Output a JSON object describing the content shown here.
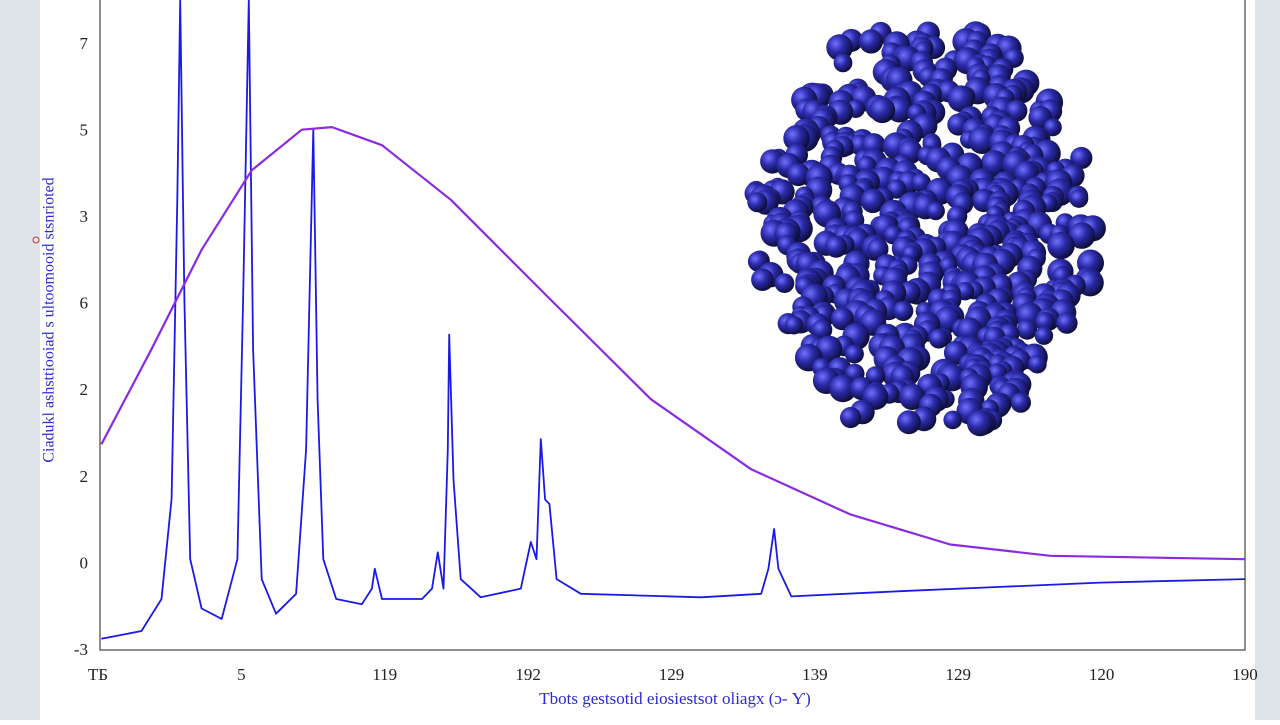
{
  "chart_data": {
    "type": "line",
    "x_axis_label": "Ƭbots gestsotid eiosiestsot oliagx (ɔ- Ƴ)",
    "y_axis_label": "Ciadukl ashsttiooiad s ultoomooid stsnrioted",
    "x_labels": [
      "ТБ",
      "5",
      "119",
      "192",
      "129",
      "139",
      "129",
      "120",
      "190"
    ],
    "y_labels": [
      "-3",
      "0",
      "2",
      "2",
      "6",
      "3",
      "5",
      "7"
    ],
    "xlim": [
      0,
      8
    ],
    "ylim": [
      0,
      7.52
    ],
    "series": [
      {
        "color": "#1a1ae6",
        "x": [
          0.01,
          0.29,
          0.43,
          0.5,
          0.54,
          0.56,
          0.59,
          0.63,
          0.71,
          0.85,
          0.96,
          1.0,
          1.04,
          1.07,
          1.13,
          1.23,
          1.37,
          1.44,
          1.49,
          1.52,
          1.56,
          1.65,
          1.83,
          1.9,
          1.92,
          1.97,
          2.25,
          2.32,
          2.36,
          2.4,
          2.43,
          2.44,
          2.47,
          2.52,
          2.66,
          2.94,
          3.01,
          3.05,
          3.08,
          3.11,
          3.14,
          3.19,
          3.36,
          4.2,
          4.62,
          4.67,
          4.71,
          4.74,
          4.83,
          5.59,
          6.29,
          6.99,
          8.0
        ],
        "values": [
          0.13,
          0.22,
          0.59,
          1.75,
          5.21,
          7.52,
          4.05,
          1.05,
          0.48,
          0.36,
          1.05,
          4.05,
          7.52,
          3.48,
          0.82,
          0.42,
          0.65,
          2.32,
          6.02,
          2.89,
          1.05,
          0.59,
          0.53,
          0.71,
          0.94,
          0.59,
          0.59,
          0.71,
          1.13,
          0.71,
          2.32,
          3.65,
          1.97,
          0.82,
          0.61,
          0.71,
          1.25,
          1.05,
          2.44,
          1.74,
          1.69,
          0.82,
          0.65,
          0.61,
          0.65,
          0.94,
          1.4,
          0.94,
          0.62,
          0.68,
          0.73,
          0.78,
          0.82
        ]
      },
      {
        "color": "#8a2be2",
        "x": [
          0.01,
          0.36,
          0.71,
          1.06,
          1.41,
          1.62,
          1.97,
          2.45,
          3.15,
          3.85,
          4.55,
          5.24,
          5.94,
          6.64,
          8.0
        ],
        "values": [
          2.38,
          3.48,
          4.63,
          5.55,
          6.02,
          6.05,
          5.84,
          5.21,
          4.05,
          2.9,
          2.09,
          1.57,
          1.22,
          1.09,
          1.05
        ]
      }
    ]
  }
}
